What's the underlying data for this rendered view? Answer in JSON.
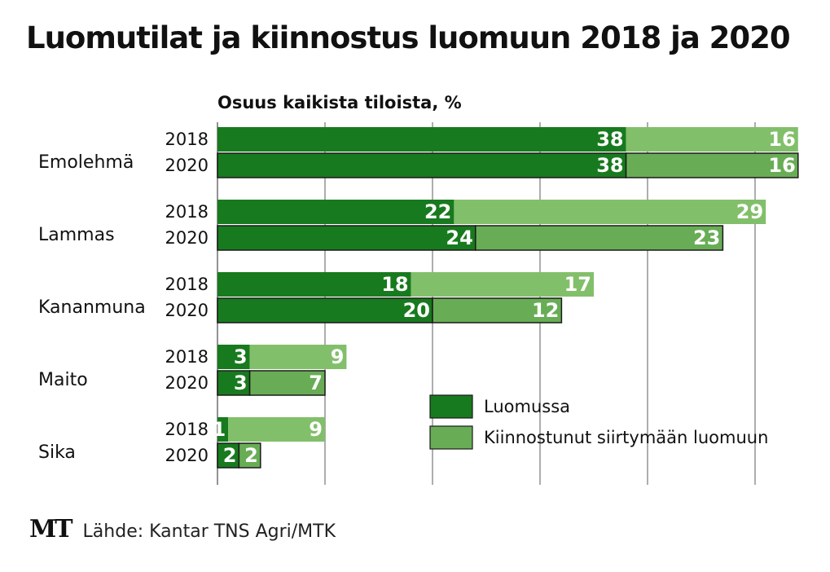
{
  "brand": {
    "logo": "MT"
  },
  "footer": {
    "source": "Lähde: Kantar TNS Agri/MTK"
  },
  "colors": {
    "luomussa": "#187a1e",
    "kiinnostunut_2018": "#82bf6a",
    "kiinnostunut_2020": "#68ad55",
    "grid": "#777777",
    "text": "#111111"
  },
  "chart_data": {
    "type": "bar",
    "orientation": "horizontal",
    "stacked": true,
    "title": "Luomutilat ja kiinnostus luomuun 2018 ja 2020",
    "subtitle": "Osuus kaikista tiloista, %",
    "xlim": [
      0,
      55
    ],
    "grid": true,
    "legend_position": "bottom-right",
    "series_names": [
      "Luomussa",
      "Kiinnostunut siirtymään luomuun"
    ],
    "groups": [
      {
        "name": "Emolehmä",
        "rows": [
          {
            "year": "2018",
            "values": [
              38,
              16
            ]
          },
          {
            "year": "2020",
            "values": [
              38,
              16
            ]
          }
        ]
      },
      {
        "name": "Lammas",
        "rows": [
          {
            "year": "2018",
            "values": [
              22,
              29
            ]
          },
          {
            "year": "2020",
            "values": [
              24,
              23
            ]
          }
        ]
      },
      {
        "name": "Kananmuna",
        "rows": [
          {
            "year": "2018",
            "values": [
              18,
              17
            ]
          },
          {
            "year": "2020",
            "values": [
              20,
              12
            ]
          }
        ]
      },
      {
        "name": "Maito",
        "rows": [
          {
            "year": "2018",
            "values": [
              3,
              9
            ]
          },
          {
            "year": "2020",
            "values": [
              3,
              7
            ]
          }
        ]
      },
      {
        "name": "Sika",
        "rows": [
          {
            "year": "2018",
            "values": [
              1,
              9
            ]
          },
          {
            "year": "2020",
            "values": [
              2,
              2
            ]
          }
        ]
      }
    ]
  }
}
